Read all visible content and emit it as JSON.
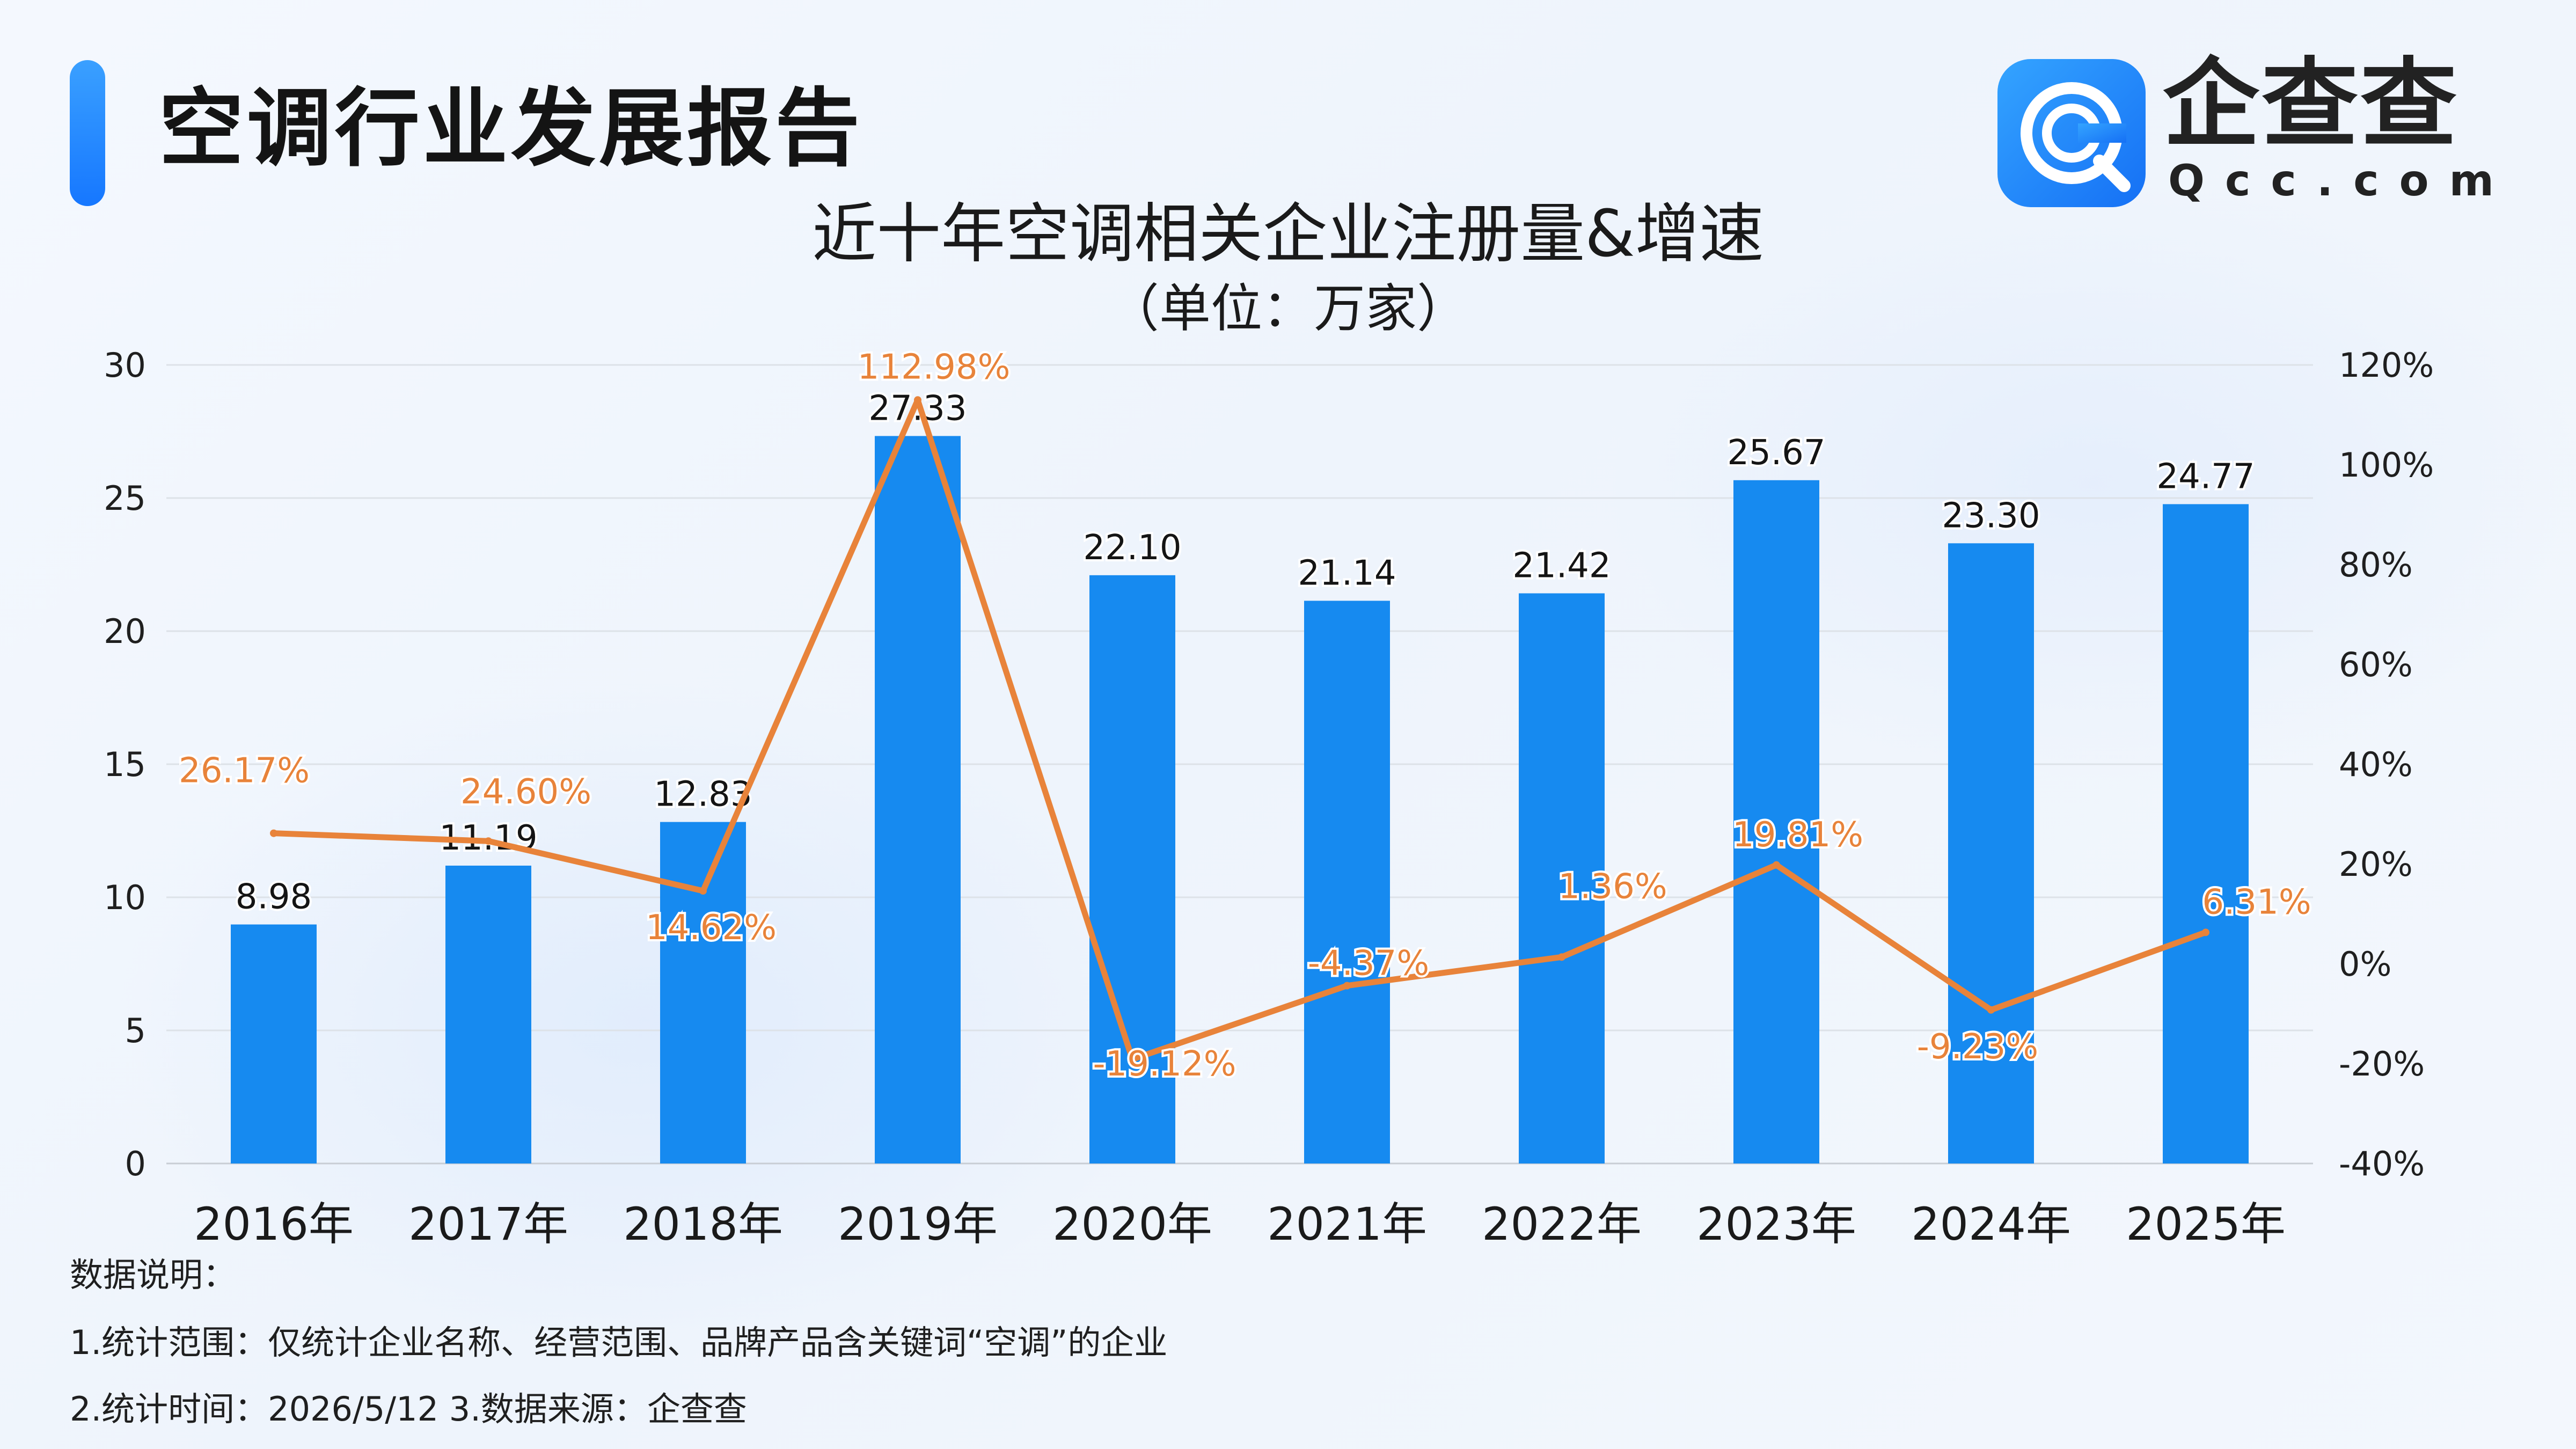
{
  "header": {
    "report_title": "空调行业发展报告",
    "logo_text": "企查查",
    "logo_domain": "Qcc.com"
  },
  "chart_data": {
    "type": "bar",
    "title": "近十年空调相关企业注册量&增速",
    "subtitle": "（单位：万家）",
    "categories": [
      "2016年",
      "2017年",
      "2018年",
      "2019年",
      "2020年",
      "2021年",
      "2022年",
      "2023年",
      "2024年",
      "2025年"
    ],
    "series": [
      {
        "type": "bar",
        "values": [
          8.98,
          11.19,
          12.83,
          27.33,
          22.1,
          21.14,
          21.42,
          25.67,
          23.3,
          24.77
        ],
        "labels": [
          "8.98",
          "11.19",
          "12.83",
          "27.33",
          "22.10",
          "21.14",
          "21.42",
          "25.67",
          "23.30",
          "24.77"
        ],
        "color": "#168af0",
        "axis": "left"
      },
      {
        "type": "line",
        "values": [
          26.17,
          24.6,
          14.62,
          112.98,
          -19.12,
          -4.37,
          1.36,
          19.81,
          -9.23,
          6.31
        ],
        "labels": [
          "26.17%",
          "24.60%",
          "14.62%",
          "112.98%",
          "-19.12%",
          "-4.37%",
          "1.36%",
          "19.81%",
          "-9.23%",
          "6.31%"
        ],
        "color": "#e8833a",
        "axis": "right"
      }
    ],
    "y_left": {
      "range": [
        0,
        30
      ],
      "ticks": [
        "0",
        "5",
        "10",
        "15",
        "20",
        "25",
        "30"
      ]
    },
    "y_right": {
      "range": [
        -40,
        120
      ],
      "ticks": [
        "-40%",
        "-20%",
        "0%",
        "20%",
        "40%",
        "60%",
        "80%",
        "100%",
        "120%"
      ]
    },
    "grid": true,
    "legend": "none"
  },
  "notes": {
    "heading": "数据说明：",
    "line1": "1.统计范围：仅统计企业名称、经营范围、品牌产品含关键词“空调”的企业",
    "line2": "2.统计时间：2026/5/12  3.数据来源：企查查"
  },
  "colors": {
    "accent": "#1677ff",
    "bar": "#168af0",
    "line": "#e8833a"
  }
}
